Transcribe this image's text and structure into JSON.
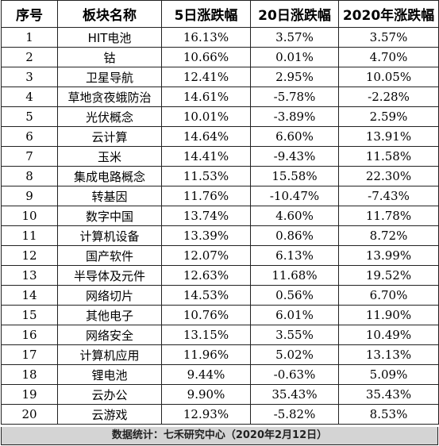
{
  "headers": [
    "序号",
    "板块名称",
    "5日涨跌幅",
    "20日涨跌幅",
    "2020年涨跌幅"
  ],
  "rows": [
    {
      "idx": "1",
      "name": "HIT电池",
      "d5": "16.13%",
      "d20": "3.57%",
      "ytd": "3.57%"
    },
    {
      "idx": "2",
      "name": "钴",
      "d5": "10.66%",
      "d20": "0.01%",
      "ytd": "4.70%"
    },
    {
      "idx": "3",
      "name": "卫星导航",
      "d5": "12.41%",
      "d20": "2.95%",
      "ytd": "10.05%"
    },
    {
      "idx": "4",
      "name": "草地贪夜蛾防治",
      "d5": "14.61%",
      "d20": "-5.78%",
      "ytd": "-2.28%"
    },
    {
      "idx": "5",
      "name": "光伏概念",
      "d5": "10.01%",
      "d20": "-3.89%",
      "ytd": "2.59%"
    },
    {
      "idx": "6",
      "name": "云计算",
      "d5": "14.64%",
      "d20": "6.60%",
      "ytd": "13.91%"
    },
    {
      "idx": "7",
      "name": "玉米",
      "d5": "14.41%",
      "d20": "-9.43%",
      "ytd": "11.58%"
    },
    {
      "idx": "8",
      "name": "集成电路概念",
      "d5": "11.53%",
      "d20": "15.58%",
      "ytd": "22.30%"
    },
    {
      "idx": "9",
      "name": "转基因",
      "d5": "11.76%",
      "d20": "-10.47%",
      "ytd": "-7.43%"
    },
    {
      "idx": "10",
      "name": "数字中国",
      "d5": "13.74%",
      "d20": "4.60%",
      "ytd": "11.78%"
    },
    {
      "idx": "11",
      "name": "计算机设备",
      "d5": "13.39%",
      "d20": "0.86%",
      "ytd": "8.72%"
    },
    {
      "idx": "12",
      "name": "国产软件",
      "d5": "12.07%",
      "d20": "6.13%",
      "ytd": "13.99%"
    },
    {
      "idx": "13",
      "name": "半导体及元件",
      "d5": "12.63%",
      "d20": "11.68%",
      "ytd": "19.52%"
    },
    {
      "idx": "14",
      "name": "网络切片",
      "d5": "14.53%",
      "d20": "0.56%",
      "ytd": "6.70%"
    },
    {
      "idx": "15",
      "name": "其他电子",
      "d5": "10.76%",
      "d20": "6.01%",
      "ytd": "11.90%"
    },
    {
      "idx": "16",
      "name": "网络安全",
      "d5": "13.15%",
      "d20": "3.55%",
      "ytd": "10.49%"
    },
    {
      "idx": "17",
      "name": "计算机应用",
      "d5": "11.96%",
      "d20": "5.02%",
      "ytd": "13.13%"
    },
    {
      "idx": "18",
      "name": "锂电池",
      "d5": "9.44%",
      "d20": "-0.63%",
      "ytd": "5.09%"
    },
    {
      "idx": "19",
      "name": "云办公",
      "d5": "9.90%",
      "d20": "35.43%",
      "ytd": "35.43%"
    },
    {
      "idx": "20",
      "name": "云游戏",
      "d5": "12.93%",
      "d20": "-5.82%",
      "ytd": "8.53%"
    }
  ],
  "footer": "数据统计：七禾研究中心（2020年2月12日）"
}
